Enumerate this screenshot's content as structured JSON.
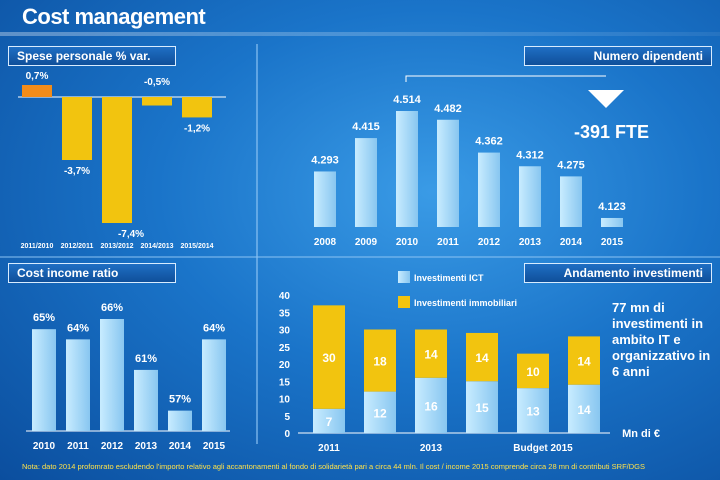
{
  "title": "Cost management",
  "headers": {
    "spese": "Spese personale % var.",
    "dipendenti": "Numero dipendenti",
    "cir": "Cost income ratio",
    "investimenti": "Andamento investimenti"
  },
  "fte_label": "-391 FTE",
  "invest_note": "77 mn di investimenti in ambito IT e organizzativo in 6 anni",
  "footnote": "Nota: dato 2014 profomrato escludendo l'importo relativo agli accantonamenti al fondo di solidarietà pari a circa 44 mln. Il cost / income 2015 comprende circa 28 mn di contributi SRF/DGS",
  "colors": {
    "blue": "#a6d8f8",
    "yellow": "#f2c40f",
    "orange": "#f28c1a"
  },
  "chart_data": [
    {
      "id": "spese",
      "type": "bar",
      "title": "Spese personale % var.",
      "categories": [
        "2011/2010",
        "2012/2011",
        "2013/2012",
        "2014/2013",
        "2015/2014"
      ],
      "values": [
        0.7,
        -3.7,
        -7.4,
        -0.5,
        -1.2
      ],
      "labels": [
        "0,7%",
        "-3,7%",
        "-7,4%",
        "-0,5%",
        "-1,2%"
      ],
      "ylim": [
        -7.4,
        0.7
      ]
    },
    {
      "id": "dipendenti",
      "type": "bar",
      "title": "Numero dipendenti",
      "categories": [
        "2008",
        "2009",
        "2010",
        "2011",
        "2012",
        "2013",
        "2014",
        "2015"
      ],
      "values": [
        4293,
        4415,
        4514,
        4482,
        4362,
        4312,
        4275,
        4123
      ],
      "labels": [
        "4.293",
        "4.415",
        "4.514",
        "4.482",
        "4.362",
        "4.312",
        "4.275",
        "4.123"
      ]
    },
    {
      "id": "cir",
      "type": "bar",
      "title": "Cost income ratio",
      "categories": [
        "2010",
        "2011",
        "2012",
        "2013",
        "2014",
        "2015"
      ],
      "values": [
        65,
        64,
        66,
        61,
        57,
        64
      ],
      "labels": [
        "65%",
        "64%",
        "66%",
        "61%",
        "57%",
        "64%"
      ]
    },
    {
      "id": "investimenti",
      "type": "bar",
      "title": "Andamento investimenti",
      "stacked": true,
      "categories": [
        "2011",
        "",
        "2013",
        "",
        "Budget 2015",
        ""
      ],
      "series": [
        {
          "name": "Investimenti ICT",
          "values": [
            7,
            12,
            16,
            15,
            13,
            14
          ]
        },
        {
          "name": "Investimenti immobiliari",
          "values": [
            30,
            18,
            14,
            14,
            10,
            14
          ]
        }
      ],
      "ylabel": "Mn di €",
      "yticks": [
        0,
        5,
        10,
        15,
        20,
        25,
        30,
        35,
        40
      ],
      "ylim": [
        0,
        40
      ]
    }
  ]
}
